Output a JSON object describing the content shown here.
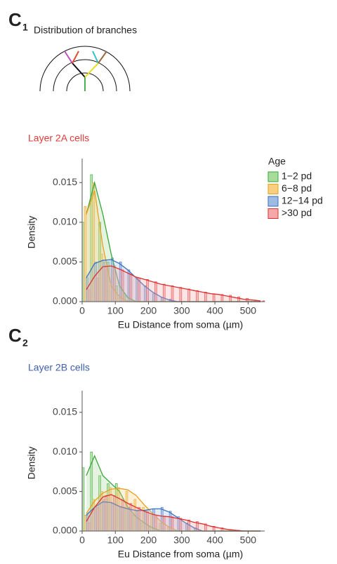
{
  "panels": [
    {
      "letter": "C",
      "index": "1"
    },
    {
      "letter": "C",
      "index": "2"
    }
  ],
  "diagram_title": "Distribution of branches",
  "chart_data": [
    {
      "type": "histogram",
      "title": "Layer 2A cells",
      "title_color": "#e03a3a",
      "xlabel": "Eu Distance from soma (µm)",
      "ylabel": "Density",
      "xlim": [
        0,
        550
      ],
      "ylim": [
        0,
        0.0175
      ],
      "xticks": [
        0,
        100,
        200,
        300,
        400,
        500
      ],
      "yticks": [
        {
          "value": 0,
          "label": "0.000"
        },
        0.005,
        {
          "value": 0.01,
          "label": "0.010"
        },
        0.015
      ],
      "legend": true,
      "legend_title": "Age",
      "bins": [
        0,
        25,
        50,
        75,
        100,
        125,
        150,
        175,
        200,
        225,
        250,
        275,
        300,
        325,
        350,
        375,
        400,
        425,
        450,
        475,
        500,
        525,
        550
      ],
      "density_x": [
        12.5,
        37.5,
        62.5,
        87.5,
        112.5,
        137.5,
        162.5,
        187.5,
        212.5,
        237.5,
        262.5,
        287.5,
        312.5,
        337.5,
        362.5,
        387.5,
        412.5,
        437.5,
        462.5,
        487.5,
        512.5,
        537.5
      ],
      "series": [
        {
          "name": "1−2 pd",
          "color": "#3aa53a",
          "fill": "#a8dc9c",
          "values": [
            0.01,
            0.016,
            0.01,
            0.005,
            0.002,
            0.001,
            0,
            0,
            0,
            0,
            0,
            0,
            0,
            0,
            0,
            0,
            0,
            0,
            0,
            0,
            0,
            0
          ],
          "density": [
            0.011,
            0.015,
            0.011,
            0.006,
            0.002,
            0.0005,
            0,
            0,
            0,
            0,
            0,
            0,
            0,
            0,
            0,
            0,
            0,
            0,
            0,
            0,
            0,
            0
          ]
        },
        {
          "name": "6−8 pd",
          "color": "#e8a020",
          "fill": "#f8cf80",
          "values": [
            0.012,
            0.015,
            0.006,
            0.002,
            0.0005,
            0,
            0,
            0,
            0,
            0,
            0,
            0,
            0,
            0,
            0,
            0,
            0,
            0,
            0,
            0,
            0,
            0
          ],
          "density": [
            0.011,
            0.014,
            0.007,
            0.002,
            0.0006,
            0,
            0,
            0,
            0,
            0,
            0,
            0,
            0,
            0,
            0,
            0,
            0,
            0,
            0,
            0,
            0,
            0
          ]
        },
        {
          "name": "12−14 pd",
          "color": "#3a6fbf",
          "fill": "#9dbbe3",
          "values": [
            0.003,
            0.005,
            0.005,
            0.0055,
            0.005,
            0.004,
            0.003,
            0.002,
            0.001,
            0.0005,
            0.0003,
            0,
            0,
            0,
            0,
            0,
            0,
            0,
            0,
            0,
            0,
            0
          ],
          "density": [
            0.003,
            0.0048,
            0.0052,
            0.0053,
            0.0048,
            0.004,
            0.003,
            0.002,
            0.0012,
            0.0006,
            0.0002,
            0,
            0,
            0,
            0,
            0,
            0,
            0,
            0,
            0,
            0,
            0
          ]
        },
        {
          "name": ">30 pd",
          "color": "#e03030",
          "fill": "#f6a8a8",
          "values": [
            0.0015,
            0.003,
            0.0045,
            0.0045,
            0.004,
            0.0035,
            0.003,
            0.0028,
            0.0025,
            0.0022,
            0.002,
            0.0018,
            0.0016,
            0.0014,
            0.0012,
            0.001,
            0.0009,
            0.0008,
            0.0006,
            0.0004,
            0.0002,
            0.0001
          ],
          "density": [
            0.0015,
            0.0032,
            0.0044,
            0.0045,
            0.0041,
            0.0036,
            0.0031,
            0.0028,
            0.0025,
            0.0022,
            0.002,
            0.0018,
            0.0016,
            0.0014,
            0.0012,
            0.001,
            0.0009,
            0.0007,
            0.0005,
            0.0003,
            0.0002,
            0.0001
          ]
        }
      ]
    },
    {
      "type": "histogram",
      "title": "Layer 2B cells",
      "title_color": "#3f5fb0",
      "xlabel": "Eu Distance from soma (µm)",
      "ylabel": "Density",
      "xlim": [
        0,
        550
      ],
      "ylim": [
        0,
        0.0172
      ],
      "xticks": [
        0,
        100,
        200,
        300,
        400,
        500
      ],
      "yticks": [
        {
          "value": 0,
          "label": "0.000"
        },
        0.005,
        {
          "value": 0.01,
          "label": "0.010"
        },
        0.015
      ],
      "legend": false,
      "bins": [
        0,
        25,
        50,
        75,
        100,
        125,
        150,
        175,
        200,
        225,
        250,
        275,
        300,
        325,
        350,
        375,
        400,
        425,
        450,
        475,
        500,
        525,
        550
      ],
      "density_x": [
        12.5,
        37.5,
        62.5,
        87.5,
        112.5,
        137.5,
        162.5,
        187.5,
        212.5,
        237.5,
        262.5,
        287.5,
        312.5,
        337.5,
        362.5,
        387.5,
        412.5,
        437.5,
        462.5,
        487.5,
        512.5,
        537.5
      ],
      "series": [
        {
          "color": "#3aa53a",
          "fill": "#a8dc9c",
          "values": [
            0.008,
            0.01,
            0.007,
            0.006,
            0.006,
            0.003,
            0.002,
            0.001,
            0.0005,
            0,
            0,
            0,
            0,
            0,
            0,
            0,
            0,
            0,
            0,
            0,
            0,
            0
          ],
          "density": [
            0.007,
            0.0095,
            0.007,
            0.006,
            0.005,
            0.003,
            0.0018,
            0.001,
            0.0004,
            0,
            0,
            0,
            0,
            0,
            0,
            0,
            0,
            0,
            0,
            0,
            0,
            0
          ]
        },
        {
          "color": "#e8a020",
          "fill": "#f8cf80",
          "values": [
            0.002,
            0.004,
            0.005,
            0.0055,
            0.0055,
            0.005,
            0.004,
            0.003,
            0.002,
            0.001,
            0.0005,
            0,
            0,
            0,
            0,
            0,
            0,
            0,
            0,
            0,
            0,
            0
          ],
          "density": [
            0.0022,
            0.0038,
            0.0048,
            0.0053,
            0.0054,
            0.0052,
            0.0045,
            0.0033,
            0.0022,
            0.0012,
            0.0005,
            0,
            0,
            0,
            0,
            0,
            0,
            0,
            0,
            0,
            0,
            0
          ]
        },
        {
          "color": "#3a6fbf",
          "fill": "#9dbbe3",
          "values": [
            0.002,
            0.003,
            0.004,
            0.0035,
            0.003,
            0.003,
            0.0025,
            0.0025,
            0.0028,
            0.003,
            0.0025,
            0.0018,
            0.001,
            0.0004,
            0,
            0,
            0,
            0,
            0,
            0,
            0,
            0
          ],
          "density": [
            0.002,
            0.003,
            0.0037,
            0.0036,
            0.0031,
            0.0028,
            0.0026,
            0.0026,
            0.0028,
            0.0028,
            0.0024,
            0.0017,
            0.001,
            0.0004,
            0,
            0,
            0,
            0,
            0,
            0,
            0,
            0
          ]
        },
        {
          "color": "#e03030",
          "fill": "#f6a8a8",
          "values": [
            0.001,
            0.003,
            0.0045,
            0.0045,
            0.004,
            0.0035,
            0.003,
            0.0025,
            0.002,
            0.0018,
            0.0018,
            0.0016,
            0.0014,
            0.0012,
            0.0009,
            0.0006,
            0.0004,
            0.0002,
            0.0001,
            0,
            0,
            0
          ],
          "density": [
            0.0012,
            0.003,
            0.0043,
            0.0046,
            0.0041,
            0.0035,
            0.003,
            0.0025,
            0.0021,
            0.0019,
            0.0018,
            0.0016,
            0.0014,
            0.0011,
            0.0009,
            0.0006,
            0.0004,
            0.0002,
            0.0001,
            0,
            0,
            0
          ]
        }
      ]
    }
  ]
}
